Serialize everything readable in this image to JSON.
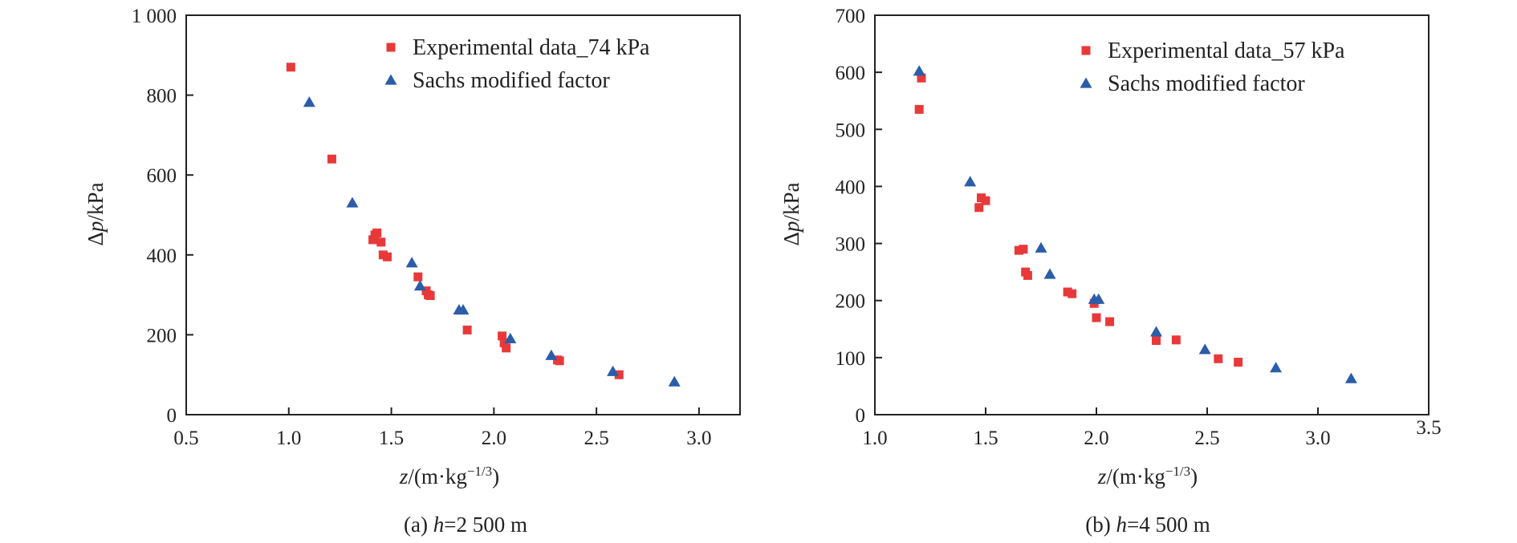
{
  "colors": {
    "experimental": "#e8393a",
    "sachs": "#2b5da8",
    "axis": "#222222"
  },
  "chart_data": [
    {
      "type": "scatter",
      "caption": {
        "prefix": "(a) ",
        "var": "h",
        "rest": "=2 500 m"
      },
      "xlabel": {
        "var": "z",
        "unit": "/(m·kg",
        "exp": "−1/3",
        "close": ")"
      },
      "ylabel": {
        "prefix": "Δ",
        "var": "p",
        "unit": "/kPa"
      },
      "xlim": [
        0.5,
        3.2
      ],
      "ylim": [
        0,
        1000
      ],
      "x_ticks": [
        0.5,
        1.0,
        1.5,
        2.0,
        2.5,
        3.0
      ],
      "x_tick_labels": [
        "0.5",
        "1.0",
        "1.5",
        "2.0",
        "2.5",
        "3.0"
      ],
      "y_ticks": [
        0,
        200,
        400,
        600,
        800,
        1000
      ],
      "y_tick_labels": [
        "0",
        "200",
        "400",
        "600",
        "800",
        "1 000"
      ],
      "legend_position": "top-right",
      "series": [
        {
          "name": "Experimental data_74 kPa",
          "marker": "square",
          "points": [
            [
              1.01,
              870
            ],
            [
              1.21,
              640
            ],
            [
              1.42,
              450
            ],
            [
              1.43,
              455
            ],
            [
              1.41,
              438
            ],
            [
              1.45,
              432
            ],
            [
              1.46,
              400
            ],
            [
              1.48,
              395
            ],
            [
              1.63,
              345
            ],
            [
              1.67,
              310
            ],
            [
              1.68,
              300
            ],
            [
              1.69,
              298
            ],
            [
              1.87,
              212
            ],
            [
              2.04,
              197
            ],
            [
              2.05,
              180
            ],
            [
              2.06,
              167
            ],
            [
              2.31,
              137
            ],
            [
              2.32,
              135
            ],
            [
              2.61,
              100
            ]
          ]
        },
        {
          "name": "Sachs modified factor",
          "marker": "triangle",
          "points": [
            [
              1.1,
              782
            ],
            [
              1.31,
              530
            ],
            [
              1.6,
              380
            ],
            [
              1.64,
              322
            ],
            [
              1.83,
              262
            ],
            [
              1.85,
              262
            ],
            [
              2.08,
              190
            ],
            [
              2.28,
              148
            ],
            [
              2.58,
              108
            ],
            [
              2.88,
              82
            ]
          ]
        }
      ]
    },
    {
      "type": "scatter",
      "caption": {
        "prefix": "(b) ",
        "var": "h",
        "rest": "=4 500 m"
      },
      "xlabel": {
        "var": "z",
        "unit": "/(m·kg",
        "exp": "−1/3",
        "close": ")"
      },
      "ylabel": {
        "prefix": "Δ",
        "var": "p",
        "unit": "/kPa"
      },
      "xlim": [
        1.0,
        3.5
      ],
      "ylim": [
        0,
        700
      ],
      "x_ticks": [
        1.0,
        1.5,
        2.0,
        2.5,
        3.0,
        3.5
      ],
      "x_tick_labels": [
        "1.0",
        "1.5",
        "2.0",
        "2.5",
        "3.0",
        "3.5"
      ],
      "y_ticks": [
        0,
        100,
        200,
        300,
        400,
        500,
        600,
        700
      ],
      "y_tick_labels": [
        "0",
        "100",
        "200",
        "300",
        "400",
        "500",
        "600",
        "700"
      ],
      "legend_position": "top-right",
      "series": [
        {
          "name": "Experimental data_57 kPa",
          "marker": "square",
          "points": [
            [
              1.21,
              590
            ],
            [
              1.2,
              535
            ],
            [
              1.47,
              363
            ],
            [
              1.48,
              380
            ],
            [
              1.5,
              375
            ],
            [
              1.65,
              288
            ],
            [
              1.67,
              290
            ],
            [
              1.68,
              250
            ],
            [
              1.69,
              244
            ],
            [
              1.87,
              215
            ],
            [
              1.89,
              212
            ],
            [
              1.99,
              195
            ],
            [
              2.0,
              170
            ],
            [
              2.06,
              163
            ],
            [
              2.27,
              130
            ],
            [
              2.36,
              131
            ],
            [
              2.55,
              98
            ],
            [
              2.64,
              92
            ]
          ]
        },
        {
          "name": "Sachs modified factor",
          "marker": "triangle",
          "points": [
            [
              1.2,
              602
            ],
            [
              1.43,
              408
            ],
            [
              1.75,
              292
            ],
            [
              1.79,
              246
            ],
            [
              1.99,
              202
            ],
            [
              2.01,
              202
            ],
            [
              2.27,
              145
            ],
            [
              2.49,
              114
            ],
            [
              2.81,
              82
            ],
            [
              3.15,
              63
            ]
          ]
        }
      ]
    }
  ]
}
